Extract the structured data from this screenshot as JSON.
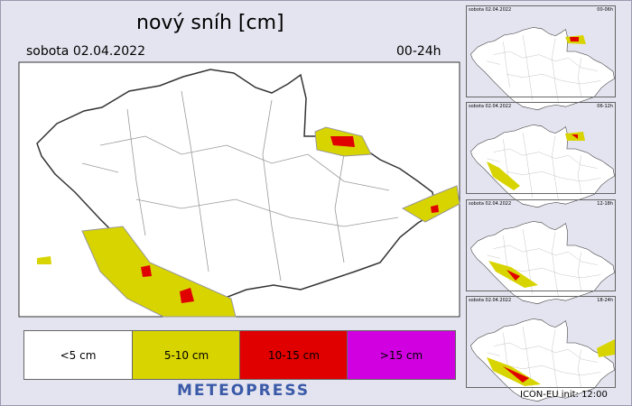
{
  "header": {
    "title": "nový sníh [cm]",
    "date": "sobota 02.04.2022",
    "period": "00-24h"
  },
  "legend": [
    {
      "label": "<5 cm"
    },
    {
      "label": "5-10 cm"
    },
    {
      "label": "10-15 cm"
    },
    {
      "label": ">15 cm"
    }
  ],
  "brand": "METEOPRESS",
  "panels": [
    {
      "date": "sobota 02.04.2022",
      "period": "00-06h"
    },
    {
      "date": "sobota 02.04.2022",
      "period": "06-12h"
    },
    {
      "date": "sobota 02.04.2022",
      "period": "12-18h"
    },
    {
      "date": "sobota 02.04.2022",
      "period": "18-24h"
    }
  ],
  "footer": "ICON-EU init: 12:00"
}
